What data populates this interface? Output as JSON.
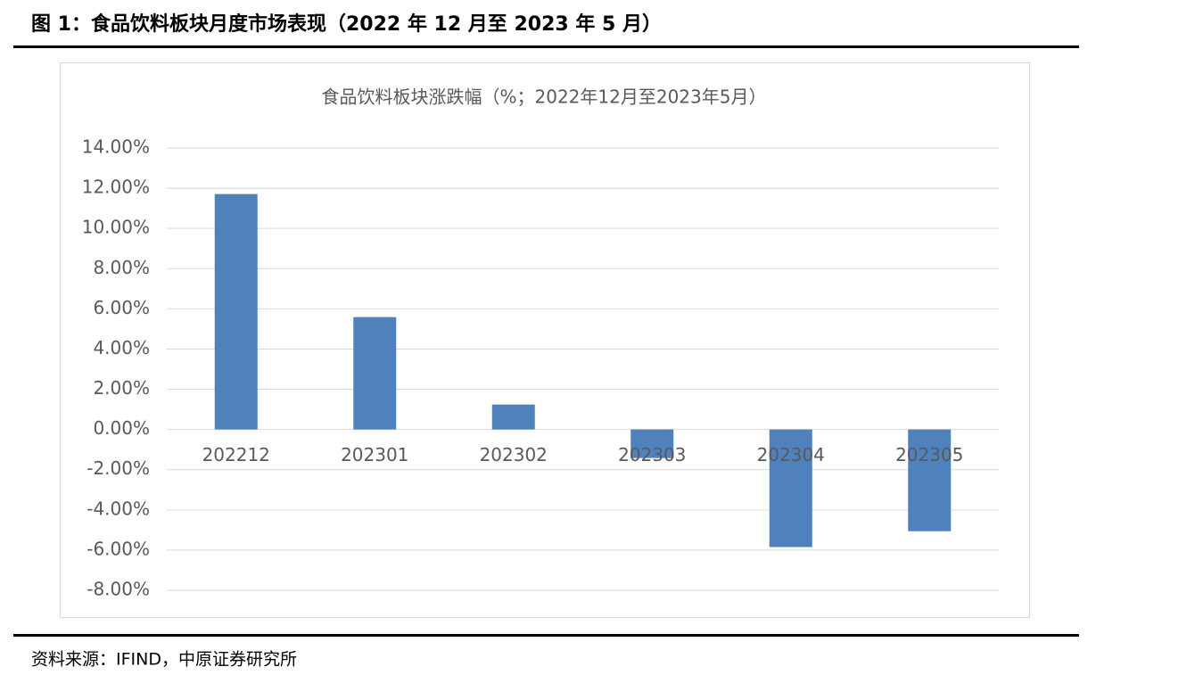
{
  "header": {
    "title": "图 1：食品饮料板块月度市场表现（2022 年 12 月至 2023 年 5 月）"
  },
  "chart_data": {
    "type": "bar",
    "title": "食品饮料板块涨跌幅（%；2022年12月至2023年5月）",
    "categories": [
      "202212",
      "202301",
      "202302",
      "202303",
      "202304",
      "202305"
    ],
    "values": [
      11.71,
      5.59,
      1.24,
      -1.42,
      -5.85,
      -5.06
    ],
    "color": "#4f81bd",
    "ylim": [
      -8,
      14
    ],
    "yticks": [
      {
        "value": -8,
        "label": "-8.00%"
      },
      {
        "value": -6,
        "label": "-6.00%"
      },
      {
        "value": -4,
        "label": "-4.00%"
      },
      {
        "value": -2,
        "label": "-2.00%"
      },
      {
        "value": 0,
        "label": "0.00%"
      },
      {
        "value": 2,
        "label": "2.00%"
      },
      {
        "value": 4,
        "label": "4.00%"
      },
      {
        "value": 6,
        "label": "6.00%"
      },
      {
        "value": 8,
        "label": "8.00%"
      },
      {
        "value": 10,
        "label": "10.00%"
      },
      {
        "value": 12,
        "label": "12.00%"
      },
      {
        "value": 14,
        "label": "14.00%"
      }
    ],
    "grid": true
  },
  "source": "资料来源：IFIND，中原证券研究所"
}
